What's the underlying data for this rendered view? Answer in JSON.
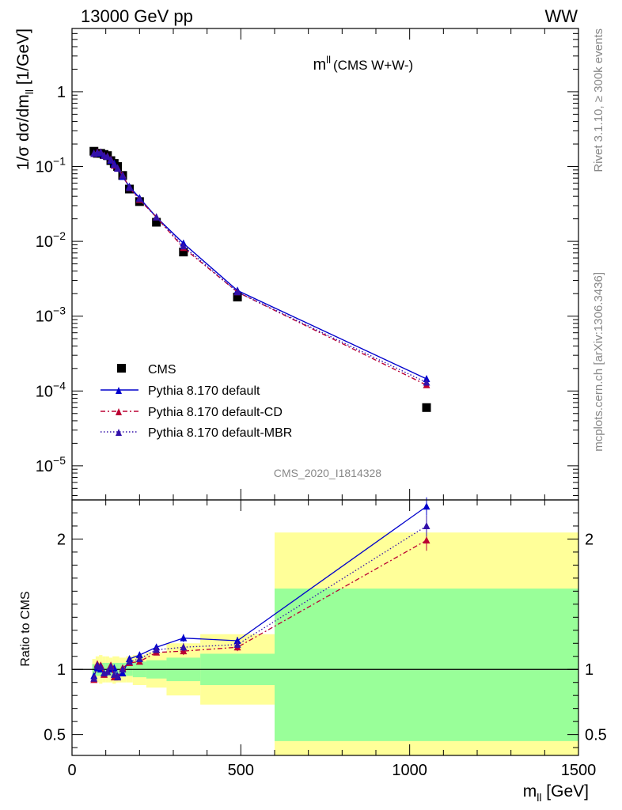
{
  "header": {
    "left_label": "13000 GeV pp",
    "right_label": "WW"
  },
  "side_labels": {
    "rivet": "Rivet 3.1.10, ≥ 300k events",
    "mcplots": "mcplots.cern.ch [arXiv:1306.3436]"
  },
  "chart_data": [
    {
      "type": "line",
      "panel": "main",
      "title_main": "m",
      "title_sup": "ll",
      "title_paren": "(CMS W+W-)",
      "analysis_id": "CMS_2020_I1814328",
      "ylabel_parts": {
        "a": "1/σ dσ/dm",
        "sub": "ll",
        "b": " [1/GeV]"
      },
      "yscale": "log",
      "ylim": [
        3.5e-06,
        7
      ],
      "xlim": [
        0,
        1500
      ],
      "yticks": [
        {
          "value": 1,
          "label": "1",
          "base": "",
          "exp": ""
        },
        {
          "value": 0.1,
          "label": "",
          "base": "10",
          "exp": "−1"
        },
        {
          "value": 0.01,
          "label": "",
          "base": "10",
          "exp": "−2"
        },
        {
          "value": 0.001,
          "label": "",
          "base": "10",
          "exp": "−3"
        },
        {
          "value": 0.0001,
          "label": "",
          "base": "10",
          "exp": "−4"
        },
        {
          "value": 1e-05,
          "label": "",
          "base": "10",
          "exp": "−5"
        }
      ],
      "legend_position": "lower-left",
      "series": [
        {
          "name": "CMS",
          "style": "square-marker",
          "color": "#000000",
          "x": [
            65,
            75,
            85,
            95,
            105,
            115,
            125,
            135,
            150,
            170,
            200,
            250,
            330,
            490,
            1050
          ],
          "y": [
            0.16,
            0.15,
            0.15,
            0.145,
            0.14,
            0.12,
            0.11,
            0.1,
            0.076,
            0.05,
            0.034,
            0.018,
            0.0072,
            0.0018,
            6e-05
          ]
        },
        {
          "name": "Pythia 8.170 default",
          "style": "solid-line-triangle",
          "color": "#0000cc",
          "x": [
            65,
            75,
            85,
            95,
            105,
            115,
            125,
            135,
            150,
            170,
            200,
            250,
            330,
            490,
            1050
          ],
          "y": [
            0.15,
            0.15,
            0.15,
            0.14,
            0.135,
            0.12,
            0.11,
            0.094,
            0.073,
            0.054,
            0.038,
            0.021,
            0.0094,
            0.0022,
            0.000145
          ]
        },
        {
          "name": "Pythia 8.170 default-CD",
          "style": "dashed-line-triangle",
          "color": "#bb0033",
          "x": [
            65,
            75,
            85,
            95,
            105,
            115,
            125,
            135,
            150,
            170,
            200,
            250,
            330,
            490,
            1050
          ],
          "y": [
            0.148,
            0.155,
            0.155,
            0.14,
            0.137,
            0.124,
            0.103,
            0.095,
            0.077,
            0.052,
            0.036,
            0.021,
            0.0082,
            0.0021,
            0.00012
          ]
        },
        {
          "name": "Pythia 8.170 default-MBR",
          "style": "dotted-line-triangle",
          "color": "#3311aa",
          "x": [
            65,
            75,
            85,
            95,
            105,
            115,
            125,
            135,
            150,
            170,
            200,
            250,
            330,
            490,
            1050
          ],
          "y": [
            0.148,
            0.153,
            0.155,
            0.14,
            0.136,
            0.123,
            0.105,
            0.095,
            0.076,
            0.052,
            0.037,
            0.021,
            0.0086,
            0.0021,
            0.00013
          ]
        }
      ]
    },
    {
      "type": "line",
      "panel": "ratio",
      "ylabel": "Ratio to CMS",
      "xlabel_parts": {
        "a": "m",
        "sub": "ll",
        "b": " [GeV]"
      },
      "ylim": [
        0.34,
        2.3
      ],
      "xlim": [
        0,
        1500
      ],
      "xticks": [
        0,
        500,
        1000,
        1500
      ],
      "yticks": [
        0.5,
        1,
        2
      ],
      "reference_line": 1,
      "bands": [
        {
          "x0": 60,
          "x1": 70,
          "inner": [
            0.96,
            1.04
          ],
          "outer": [
            0.92,
            1.08
          ]
        },
        {
          "x0": 70,
          "x1": 80,
          "inner": [
            0.95,
            1.05
          ],
          "outer": [
            0.9,
            1.1
          ]
        },
        {
          "x0": 80,
          "x1": 90,
          "inner": [
            0.95,
            1.05
          ],
          "outer": [
            0.89,
            1.11
          ]
        },
        {
          "x0": 90,
          "x1": 100,
          "inner": [
            0.95,
            1.05
          ],
          "outer": [
            0.9,
            1.1
          ]
        },
        {
          "x0": 100,
          "x1": 110,
          "inner": [
            0.95,
            1.05
          ],
          "outer": [
            0.9,
            1.1
          ]
        },
        {
          "x0": 110,
          "x1": 120,
          "inner": [
            0.95,
            1.05
          ],
          "outer": [
            0.9,
            1.09
          ]
        },
        {
          "x0": 120,
          "x1": 130,
          "inner": [
            0.95,
            1.05
          ],
          "outer": [
            0.89,
            1.1
          ]
        },
        {
          "x0": 130,
          "x1": 140,
          "inner": [
            0.95,
            1.05
          ],
          "outer": [
            0.9,
            1.1
          ]
        },
        {
          "x0": 140,
          "x1": 160,
          "inner": [
            0.95,
            1.05
          ],
          "outer": [
            0.9,
            1.09
          ]
        },
        {
          "x0": 160,
          "x1": 180,
          "inner": [
            0.95,
            1.06
          ],
          "outer": [
            0.9,
            1.1
          ]
        },
        {
          "x0": 180,
          "x1": 220,
          "inner": [
            0.94,
            1.06
          ],
          "outer": [
            0.88,
            1.11
          ]
        },
        {
          "x0": 220,
          "x1": 280,
          "inner": [
            0.93,
            1.07
          ],
          "outer": [
            0.86,
            1.13
          ]
        },
        {
          "x0": 280,
          "x1": 380,
          "inner": [
            0.91,
            1.09
          ],
          "outer": [
            0.8,
            1.2
          ]
        },
        {
          "x0": 380,
          "x1": 600,
          "inner": [
            0.88,
            1.12
          ],
          "outer": [
            0.73,
            1.27
          ]
        },
        {
          "x0": 600,
          "x1": 1500,
          "inner": [
            0.45,
            1.62
          ],
          "outer": [
            0.34,
            2.05
          ]
        }
      ],
      "series": [
        {
          "name": "Pythia 8.170 default",
          "color": "#0000cc",
          "style": "solid-line-triangle",
          "x": [
            65,
            75,
            85,
            95,
            105,
            115,
            125,
            135,
            150,
            170,
            200,
            250,
            330,
            490,
            1050
          ],
          "y": [
            0.95,
            1.01,
            1.0,
            0.97,
            0.98,
            1.0,
            1.01,
            0.95,
            0.97,
            1.08,
            1.11,
            1.17,
            1.24,
            1.22,
            2.25
          ],
          "err": [
            0.02,
            0.02,
            0.02,
            0.02,
            0.02,
            0.02,
            0.02,
            0.02,
            0.02,
            0.02,
            0.02,
            0.02,
            0.03,
            0.03,
            0.07
          ]
        },
        {
          "name": "Pythia 8.170 default-CD",
          "color": "#bb0033",
          "style": "dashed-line-triangle",
          "x": [
            65,
            75,
            85,
            95,
            105,
            115,
            125,
            135,
            150,
            170,
            200,
            250,
            330,
            490,
            1050
          ],
          "y": [
            0.92,
            1.04,
            1.03,
            0.96,
            0.98,
            1.03,
            0.94,
            0.94,
            1.01,
            1.05,
            1.06,
            1.13,
            1.14,
            1.17,
            1.99
          ],
          "err": [
            0.02,
            0.02,
            0.02,
            0.02,
            0.02,
            0.02,
            0.02,
            0.02,
            0.02,
            0.02,
            0.02,
            0.02,
            0.03,
            0.03,
            0.08
          ]
        },
        {
          "name": "Pythia 8.170 default-MBR",
          "color": "#3311aa",
          "style": "dotted-line-triangle",
          "x": [
            65,
            75,
            85,
            95,
            105,
            115,
            125,
            135,
            150,
            170,
            200,
            250,
            330,
            490,
            1050
          ],
          "y": [
            0.93,
            1.03,
            1.02,
            0.97,
            0.98,
            1.02,
            0.96,
            0.94,
            1.0,
            1.06,
            1.08,
            1.15,
            1.17,
            1.19,
            2.1
          ],
          "err": [
            0.02,
            0.02,
            0.02,
            0.02,
            0.02,
            0.02,
            0.02,
            0.02,
            0.02,
            0.02,
            0.02,
            0.02,
            0.03,
            0.03,
            0.08
          ]
        }
      ]
    }
  ]
}
